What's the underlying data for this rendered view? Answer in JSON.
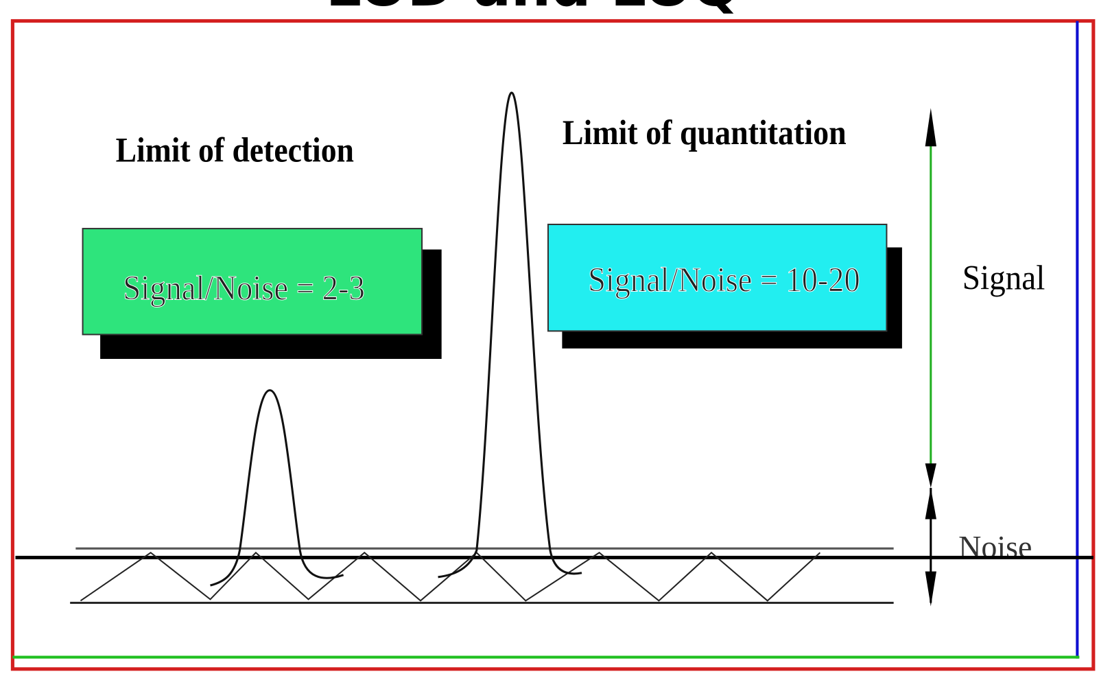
{
  "header": {
    "title": "LOD and LOQ"
  },
  "labels": {
    "lod_heading": "Limit of detection",
    "loq_heading": "Limit of quantitation",
    "lod_box": "Signal/Noise = 2-3",
    "loq_box": "Signal/Noise = 10-20",
    "signal": "Signal",
    "noise": "Noise"
  }
}
